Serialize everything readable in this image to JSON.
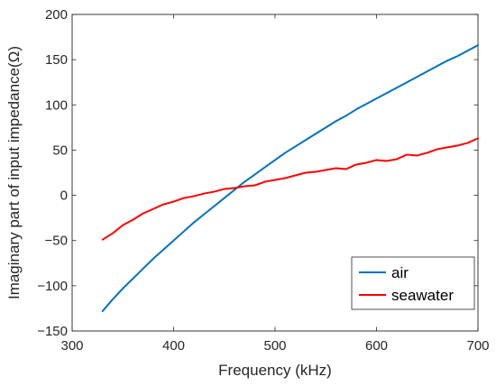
{
  "chart_data": {
    "type": "line",
    "title": "",
    "xlabel": "Frequency (kHz)",
    "ylabel": "Imaginary part of input impedance(Ω)",
    "xlim": [
      300,
      700
    ],
    "ylim": [
      -150,
      200
    ],
    "xticks": [
      300,
      400,
      500,
      600,
      700
    ],
    "yticks": [
      -150,
      -100,
      -50,
      0,
      50,
      100,
      150,
      200
    ],
    "grid": false,
    "legend_position": "bottom-right",
    "series": [
      {
        "name": "air",
        "color": "#0072BD",
        "x": [
          330,
          340,
          350,
          360,
          370,
          380,
          390,
          400,
          410,
          420,
          430,
          440,
          450,
          460,
          470,
          480,
          490,
          500,
          510,
          520,
          530,
          540,
          550,
          560,
          570,
          580,
          590,
          600,
          610,
          620,
          630,
          640,
          650,
          660,
          670,
          680,
          690,
          700
        ],
        "y": [
          -128,
          -115,
          -103,
          -92,
          -81,
          -70,
          -60,
          -50,
          -40,
          -30,
          -21,
          -12,
          -3,
          6,
          15,
          23,
          31,
          39,
          47,
          54,
          61,
          68,
          75,
          82,
          88,
          95,
          101,
          107,
          113,
          119,
          125,
          131,
          137,
          143,
          149,
          154,
          160,
          166
        ]
      },
      {
        "name": "seawater",
        "color": "#FF0000",
        "x": [
          330,
          340,
          350,
          360,
          370,
          380,
          390,
          400,
          410,
          420,
          430,
          440,
          450,
          460,
          470,
          480,
          490,
          500,
          510,
          520,
          530,
          540,
          550,
          560,
          570,
          580,
          590,
          600,
          610,
          620,
          630,
          640,
          650,
          660,
          670,
          680,
          690,
          700
        ],
        "y": [
          -49,
          -42,
          -33,
          -27,
          -20,
          -15,
          -10,
          -7,
          -3,
          -1,
          2,
          4,
          7,
          8,
          10,
          11,
          15,
          17,
          19,
          22,
          25,
          26,
          28,
          30,
          29,
          34,
          36,
          39,
          38,
          40,
          45,
          44,
          47,
          51,
          53,
          55,
          58,
          63
        ]
      }
    ]
  }
}
